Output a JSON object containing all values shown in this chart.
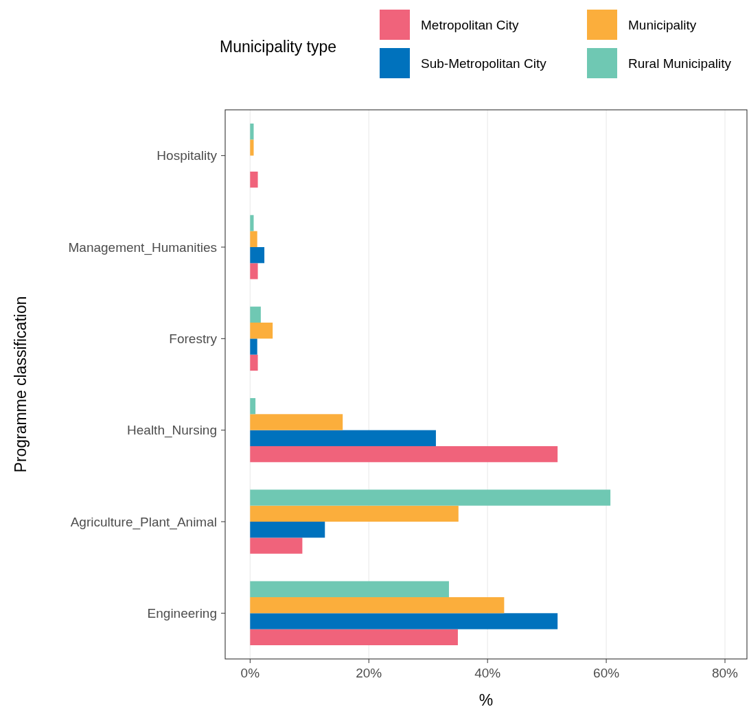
{
  "chart_data": {
    "type": "bar",
    "orientation": "horizontal",
    "xlabel": "%",
    "ylabel": "Programme classification",
    "legend_title": "Municipality type",
    "legend": "top right",
    "grid": "x",
    "categories": [
      "Hospitality",
      "Management_Humanities",
      "Forestry",
      "Health_Nursing",
      "Agriculture_Plant_Animal",
      "Engineering"
    ],
    "xlim": [
      -4.2,
      83.7
    ],
    "xticks": [
      {
        "value": 0,
        "label": "0%"
      },
      {
        "value": 20,
        "label": "20%"
      },
      {
        "value": 40,
        "label": "40%"
      },
      {
        "value": 60,
        "label": "60%"
      },
      {
        "value": 80,
        "label": "80%"
      }
    ],
    "series": [
      {
        "name": "Metropolitan City",
        "color": "#f0637b",
        "values": [
          1.3,
          1.3,
          1.3,
          51.8,
          8.8,
          35.0
        ]
      },
      {
        "name": "Sub-Metropolitan City",
        "color": "#0072bd",
        "values": [
          null,
          2.4,
          1.2,
          31.3,
          12.6,
          51.8
        ]
      },
      {
        "name": "Municipality",
        "color": "#fbae3c",
        "values": [
          0.6,
          1.2,
          3.8,
          15.6,
          35.1,
          42.8
        ]
      },
      {
        "name": "Rural Municipality",
        "color": "#6fc8b3",
        "values": [
          0.6,
          0.6,
          1.8,
          0.9,
          60.7,
          33.5
        ]
      }
    ]
  }
}
